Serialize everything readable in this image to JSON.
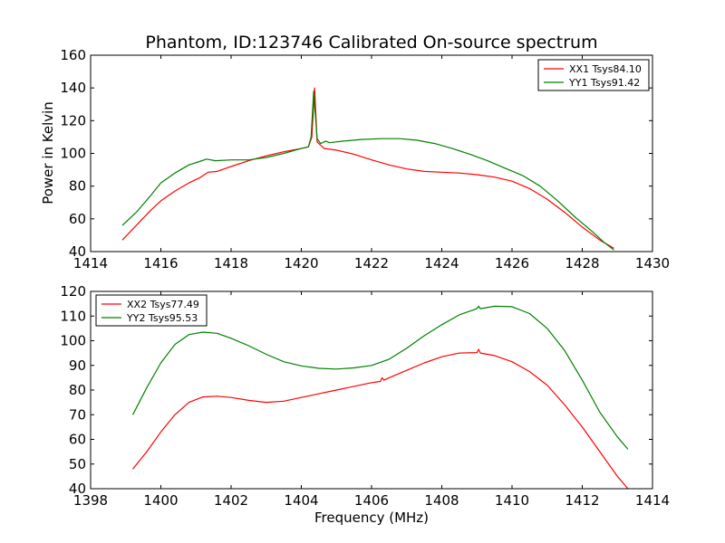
{
  "chart_data": [
    {
      "type": "line",
      "title": "Phantom, ID:123746 Calibrated On-source spectrum",
      "xlabel": "",
      "ylabel": "Power in Kelvin",
      "xlim": [
        1414,
        1430
      ],
      "ylim": [
        40,
        160
      ],
      "xticks": [
        "1414",
        "1416",
        "1418",
        "1420",
        "1422",
        "1424",
        "1426",
        "1428",
        "1430"
      ],
      "yticks": [
        "40",
        "60",
        "80",
        "100",
        "120",
        "140",
        "160"
      ],
      "grid": false,
      "legend_position": "top-right",
      "series": [
        {
          "name": "XX1 Tsys84.10",
          "color": "#ff0000",
          "points": [
            [
              1414.9,
              47
            ],
            [
              1415.3,
              56
            ],
            [
              1415.7,
              65
            ],
            [
              1416.0,
              71
            ],
            [
              1416.4,
              77
            ],
            [
              1416.8,
              82
            ],
            [
              1417.1,
              85
            ],
            [
              1417.35,
              88.5
            ],
            [
              1417.6,
              89
            ],
            [
              1418.0,
              92
            ],
            [
              1418.5,
              95.5
            ],
            [
              1419.0,
              98.5
            ],
            [
              1419.5,
              101
            ],
            [
              1420.0,
              103
            ],
            [
              1420.2,
              104
            ],
            [
              1420.3,
              110
            ],
            [
              1420.38,
              140
            ],
            [
              1420.45,
              107
            ],
            [
              1420.55,
              105
            ],
            [
              1420.65,
              103
            ],
            [
              1421.0,
              102
            ],
            [
              1421.5,
              99.5
            ],
            [
              1422.0,
              96
            ],
            [
              1422.5,
              93
            ],
            [
              1423.0,
              90.5
            ],
            [
              1423.5,
              89
            ],
            [
              1424.0,
              88.5
            ],
            [
              1424.5,
              88
            ],
            [
              1425.0,
              87
            ],
            [
              1425.5,
              85.5
            ],
            [
              1426.0,
              83
            ],
            [
              1426.5,
              78.5
            ],
            [
              1427.0,
              72
            ],
            [
              1427.5,
              64
            ],
            [
              1428.0,
              55
            ],
            [
              1428.5,
              47
            ],
            [
              1428.9,
              42
            ]
          ]
        },
        {
          "name": "YY1 Tsys91.42",
          "color": "#008000",
          "points": [
            [
              1414.9,
              56
            ],
            [
              1415.3,
              64
            ],
            [
              1415.7,
              74
            ],
            [
              1416.0,
              82
            ],
            [
              1416.4,
              88
            ],
            [
              1416.8,
              93
            ],
            [
              1417.1,
              95
            ],
            [
              1417.3,
              96.5
            ],
            [
              1417.55,
              95.5
            ],
            [
              1418.0,
              96
            ],
            [
              1418.5,
              96
            ],
            [
              1419.0,
              97.5
            ],
            [
              1419.5,
              100
            ],
            [
              1420.0,
              103
            ],
            [
              1420.2,
              104
            ],
            [
              1420.28,
              110
            ],
            [
              1420.35,
              138
            ],
            [
              1420.45,
              109
            ],
            [
              1420.55,
              106
            ],
            [
              1420.7,
              107.5
            ],
            [
              1420.8,
              106.5
            ],
            [
              1421.2,
              107.5
            ],
            [
              1421.7,
              108.5
            ],
            [
              1422.3,
              109
            ],
            [
              1422.8,
              109
            ],
            [
              1423.3,
              108
            ],
            [
              1423.8,
              106
            ],
            [
              1424.3,
              103
            ],
            [
              1424.8,
              99.5
            ],
            [
              1425.3,
              95.5
            ],
            [
              1425.8,
              91
            ],
            [
              1426.3,
              86.5
            ],
            [
              1426.8,
              80
            ],
            [
              1427.3,
              71
            ],
            [
              1427.8,
              61
            ],
            [
              1428.3,
              52
            ],
            [
              1428.6,
              46
            ],
            [
              1428.9,
              41
            ]
          ]
        }
      ]
    },
    {
      "type": "line",
      "title": "",
      "xlabel": "Frequency (MHz)",
      "ylabel": "",
      "xlim": [
        1398,
        1414
      ],
      "ylim": [
        40,
        120
      ],
      "xticks": [
        "1398",
        "1400",
        "1402",
        "1404",
        "1406",
        "1408",
        "1410",
        "1412",
        "1414"
      ],
      "yticks": [
        "40",
        "50",
        "60",
        "70",
        "80",
        "90",
        "100",
        "110",
        "120"
      ],
      "grid": false,
      "legend_position": "top-left",
      "series": [
        {
          "name": "XX2 Tsys77.49",
          "color": "#ff0000",
          "points": [
            [
              1399.2,
              48
            ],
            [
              1399.6,
              55
            ],
            [
              1400.0,
              63
            ],
            [
              1400.4,
              70
            ],
            [
              1400.8,
              75
            ],
            [
              1401.2,
              77.2
            ],
            [
              1401.6,
              77.5
            ],
            [
              1402.0,
              77
            ],
            [
              1402.5,
              75.8
            ],
            [
              1403.0,
              75
            ],
            [
              1403.5,
              75.5
            ],
            [
              1404.0,
              77
            ],
            [
              1404.5,
              78.5
            ],
            [
              1405.0,
              80
            ],
            [
              1405.5,
              81.5
            ],
            [
              1406.0,
              83
            ],
            [
              1406.25,
              83.5
            ],
            [
              1406.3,
              85
            ],
            [
              1406.35,
              84
            ],
            [
              1406.5,
              85
            ],
            [
              1407.0,
              88
            ],
            [
              1407.5,
              91
            ],
            [
              1408.0,
              93.5
            ],
            [
              1408.5,
              95
            ],
            [
              1409.0,
              95.2
            ],
            [
              1409.05,
              96.5
            ],
            [
              1409.1,
              95
            ],
            [
              1409.5,
              94
            ],
            [
              1410.0,
              91.5
            ],
            [
              1410.5,
              87.5
            ],
            [
              1411.0,
              82
            ],
            [
              1411.5,
              74
            ],
            [
              1412.0,
              65
            ],
            [
              1412.5,
              55
            ],
            [
              1413.0,
              45
            ],
            [
              1413.3,
              40
            ]
          ]
        },
        {
          "name": "YY2 Tsys95.53",
          "color": "#008000",
          "points": [
            [
              1399.2,
              70
            ],
            [
              1399.6,
              81
            ],
            [
              1400.0,
              91
            ],
            [
              1400.4,
              98.5
            ],
            [
              1400.8,
              102.5
            ],
            [
              1401.2,
              103.5
            ],
            [
              1401.6,
              103
            ],
            [
              1402.0,
              101
            ],
            [
              1402.5,
              98
            ],
            [
              1403.0,
              94.5
            ],
            [
              1403.5,
              91.5
            ],
            [
              1404.0,
              89.8
            ],
            [
              1404.5,
              88.8
            ],
            [
              1405.0,
              88.5
            ],
            [
              1405.5,
              89
            ],
            [
              1406.0,
              90
            ],
            [
              1406.5,
              92.5
            ],
            [
              1407.0,
              97
            ],
            [
              1407.5,
              102
            ],
            [
              1408.0,
              106.5
            ],
            [
              1408.5,
              110.5
            ],
            [
              1409.0,
              113
            ],
            [
              1409.05,
              114
            ],
            [
              1409.1,
              113
            ],
            [
              1409.5,
              114
            ],
            [
              1410.0,
              113.8
            ],
            [
              1410.5,
              111
            ],
            [
              1411.0,
              105
            ],
            [
              1411.5,
              96
            ],
            [
              1412.0,
              84
            ],
            [
              1412.5,
              71
            ],
            [
              1413.0,
              61
            ],
            [
              1413.3,
              56
            ]
          ]
        }
      ]
    }
  ]
}
